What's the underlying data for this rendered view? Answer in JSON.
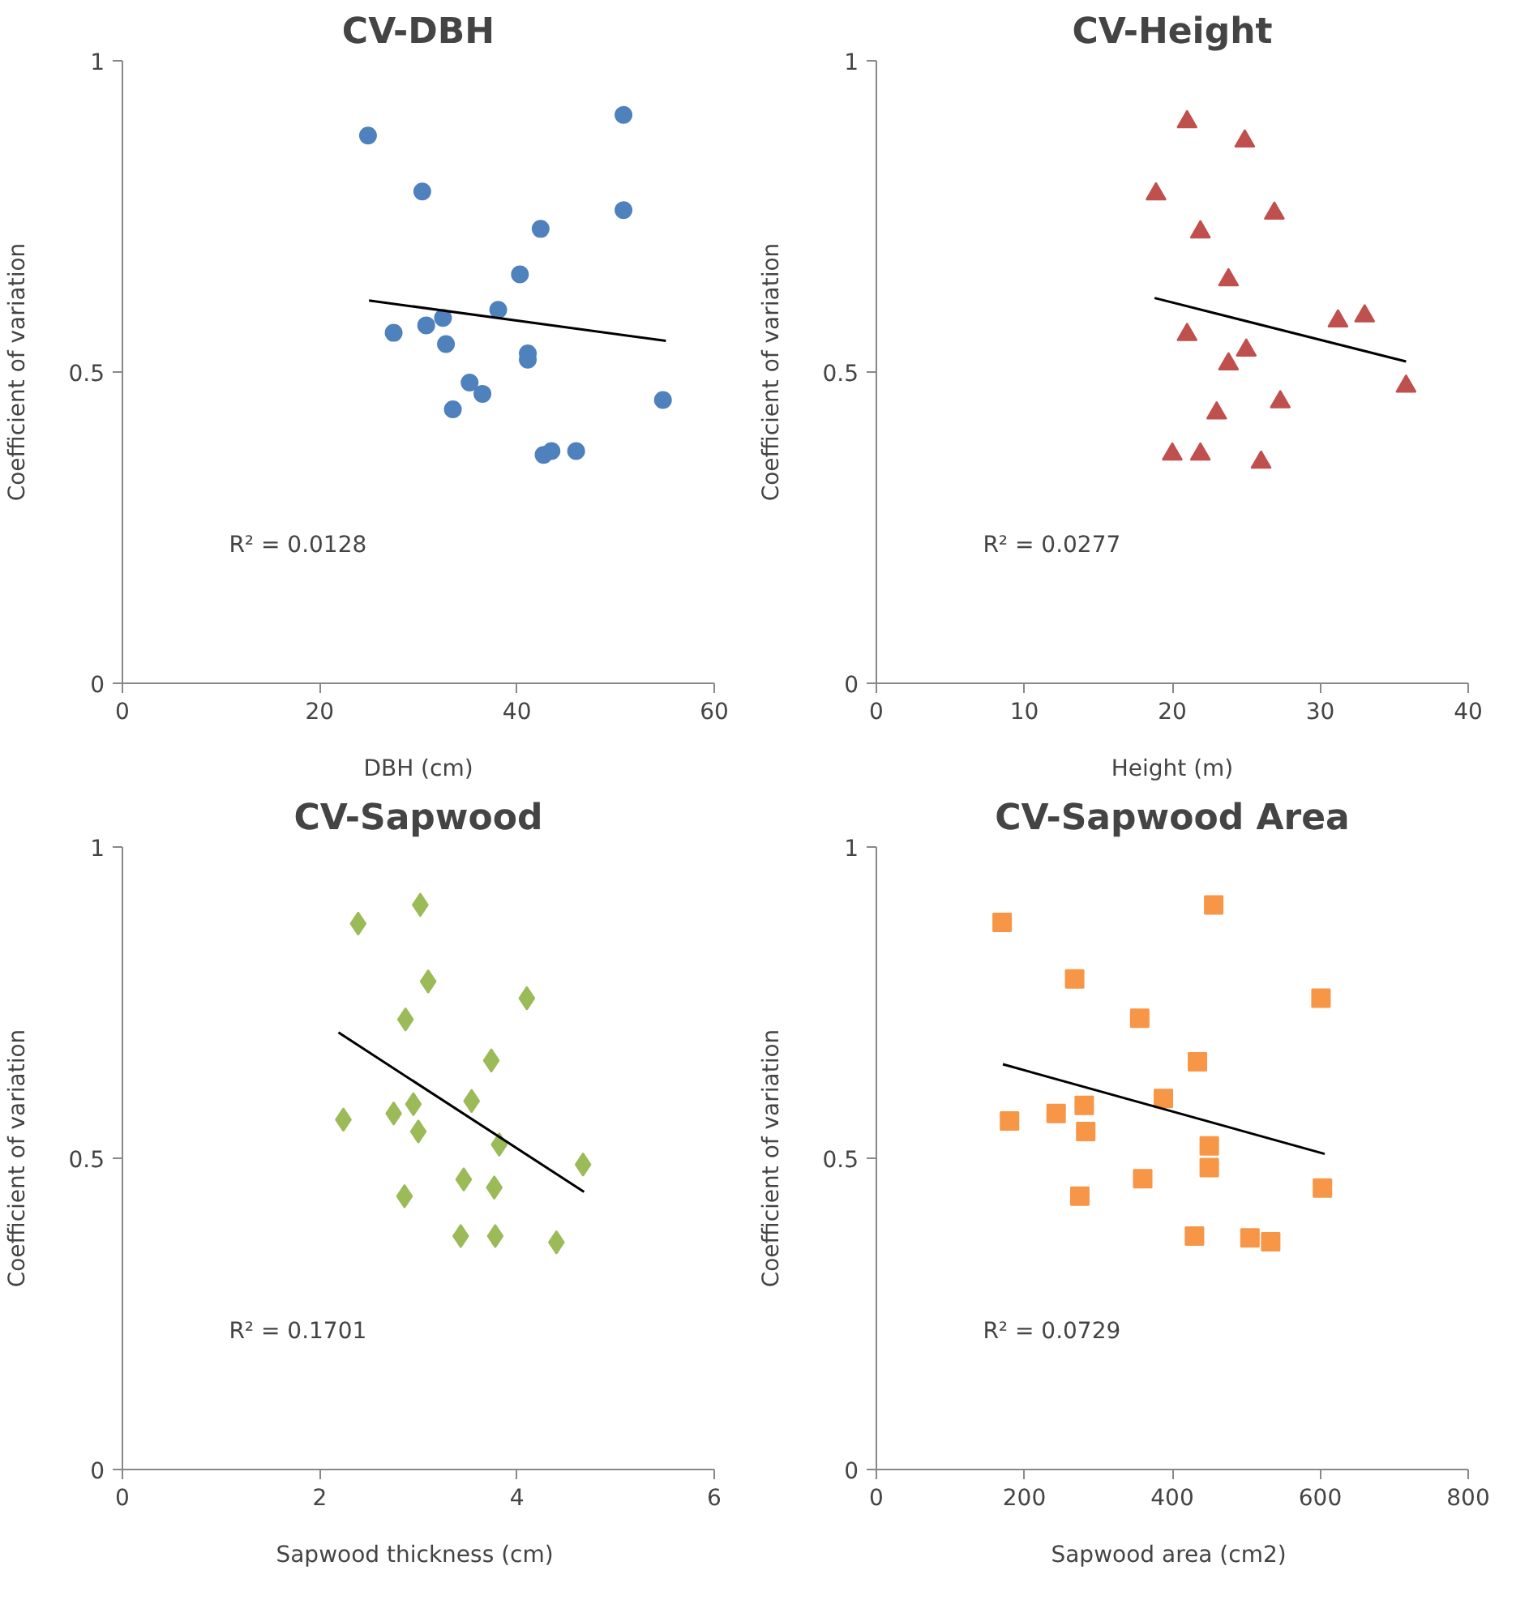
{
  "chart_data": [
    {
      "type": "scatter",
      "title": "CV-DBH",
      "xlabel": "DBH (cm)",
      "ylabel": "Coefficient of variation",
      "xlim": [
        0,
        60
      ],
      "xticks": [
        0,
        20,
        40,
        60
      ],
      "ylim": [
        0,
        1
      ],
      "yticks": [
        0,
        0.5,
        1
      ],
      "grid": false,
      "annotations": [
        "R² = 0.0128"
      ],
      "series": [
        {
          "marker": "circle",
          "color": "#4f81bd",
          "x": [
            24.9,
            30.4,
            27.5,
            30.8,
            32.5,
            32.8,
            33.5,
            35.2,
            36.5,
            38.1,
            40.3,
            41.1,
            41.1,
            42.4,
            42.7,
            43.5,
            46.0,
            50.8,
            50.8,
            54.8
          ],
          "values": [
            0.88,
            0.79,
            0.563,
            0.575,
            0.587,
            0.545,
            0.44,
            0.483,
            0.465,
            0.6,
            0.657,
            0.52,
            0.53,
            0.73,
            0.367,
            0.373,
            0.373,
            0.913,
            0.76,
            0.455
          ]
        },
        {
          "type": "line",
          "color": "#000000",
          "x": [
            25.0,
            55.1
          ],
          "values": [
            0.615,
            0.55
          ]
        }
      ]
    },
    {
      "type": "scatter",
      "title": "CV-Height",
      "xlabel": "Height (m)",
      "ylabel": "Coefficient of variation",
      "xlim": [
        0,
        40
      ],
      "xticks": [
        0,
        10,
        20,
        30,
        40
      ],
      "ylim": [
        0,
        1
      ],
      "yticks": [
        0,
        0.5,
        1
      ],
      "grid": false,
      "annotations": [
        "R² = 0.0277"
      ],
      "series": [
        {
          "marker": "triangle",
          "color": "#c0504d",
          "x": [
            21.0,
            24.9,
            18.9,
            26.9,
            21.9,
            23.8,
            21.0,
            31.2,
            33.0,
            25.0,
            23.8,
            35.8,
            23.0,
            27.3,
            20.0,
            21.9,
            26.0
          ],
          "values": [
            0.902,
            0.871,
            0.786,
            0.755,
            0.725,
            0.648,
            0.56,
            0.582,
            0.59,
            0.535,
            0.513,
            0.477,
            0.434,
            0.452,
            0.368,
            0.368,
            0.355
          ]
        },
        {
          "type": "line",
          "color": "#000000",
          "x": [
            18.8,
            35.8
          ],
          "values": [
            0.619,
            0.517
          ]
        }
      ]
    },
    {
      "type": "scatter",
      "title": "CV-Sapwood",
      "xlabel": "Sapwood thickness  (cm)",
      "ylabel": "Coefficient of variation",
      "xlim": [
        0,
        6
      ],
      "xticks": [
        0,
        2,
        4,
        6
      ],
      "ylim": [
        0,
        1
      ],
      "yticks": [
        0,
        0.5,
        1
      ],
      "grid": false,
      "annotations": [
        "R² = 0.1701"
      ],
      "series": [
        {
          "marker": "diamond",
          "color": "#9bbb59",
          "x": [
            2.39,
            3.02,
            3.1,
            4.1,
            2.87,
            3.74,
            2.24,
            2.75,
            2.95,
            3.0,
            3.54,
            3.82,
            4.67,
            3.46,
            3.77,
            2.86,
            3.43,
            3.78,
            4.4
          ],
          "values": [
            0.877,
            0.907,
            0.784,
            0.757,
            0.723,
            0.657,
            0.562,
            0.572,
            0.587,
            0.543,
            0.592,
            0.522,
            0.49,
            0.466,
            0.453,
            0.439,
            0.375,
            0.375,
            0.365
          ]
        },
        {
          "type": "line",
          "color": "#000000",
          "x": [
            2.19,
            4.68
          ],
          "values": [
            0.702,
            0.446
          ]
        }
      ]
    },
    {
      "type": "scatter",
      "title": "CV-Sapwood Area",
      "xlabel": "Sapwood area  (cm2)",
      "ylabel": "Coefficient of variation",
      "xlim": [
        0,
        800
      ],
      "xticks": [
        0,
        200,
        400,
        600,
        800
      ],
      "ylim": [
        0,
        1
      ],
      "yticks": [
        0,
        0.5,
        1
      ],
      "grid": false,
      "annotations": [
        "R² = 0.0729"
      ],
      "series": [
        {
          "marker": "square",
          "color": "#f79646",
          "x": [
            170,
            456,
            268,
            601,
            356,
            434,
            180,
            243,
            281,
            283,
            388,
            450,
            450,
            360,
            603,
            275,
            430,
            505,
            533
          ],
          "values": [
            0.879,
            0.907,
            0.788,
            0.757,
            0.725,
            0.655,
            0.56,
            0.572,
            0.585,
            0.543,
            0.596,
            0.52,
            0.485,
            0.467,
            0.452,
            0.439,
            0.375,
            0.372,
            0.366
          ]
        },
        {
          "type": "line",
          "color": "#000000",
          "x": [
            171,
            606
          ],
          "values": [
            0.651,
            0.507
          ]
        }
      ]
    }
  ]
}
